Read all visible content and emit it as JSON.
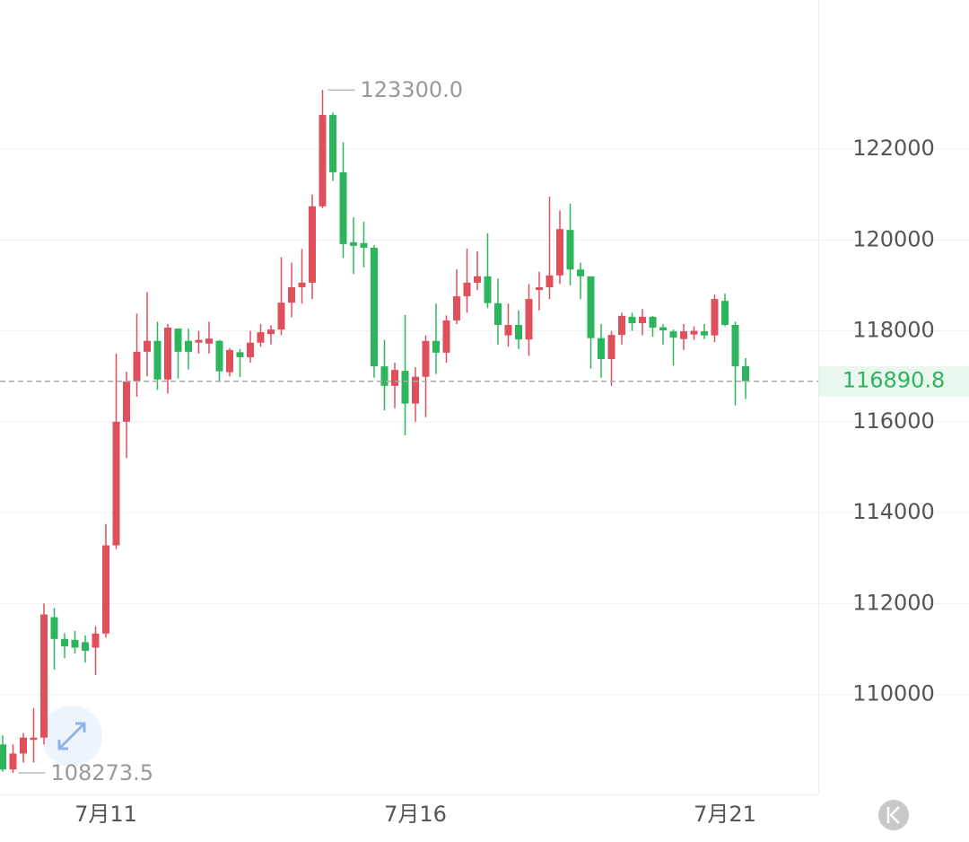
{
  "chart_data": {
    "type": "candlestick",
    "categories": [
      null,
      null,
      null,
      null,
      null,
      null,
      null,
      null,
      null,
      null,
      "7月11",
      null,
      null,
      null,
      null,
      null,
      null,
      null,
      null,
      null,
      null,
      null,
      null,
      null,
      null,
      null,
      null,
      null,
      null,
      null,
      null,
      null,
      null,
      null,
      null,
      null,
      null,
      null,
      null,
      null,
      "7月16",
      null,
      null,
      null,
      null,
      null,
      null,
      null,
      null,
      null,
      null,
      null,
      null,
      null,
      null,
      null,
      null,
      null,
      null,
      null,
      null,
      null,
      null,
      null,
      null,
      null,
      null,
      null,
      null,
      null,
      "7月21",
      null,
      null
    ],
    "open": [
      108900,
      108350,
      108700,
      109000,
      109050,
      111700,
      111220,
      111200,
      111150,
      111030,
      111340,
      113280,
      116000,
      116890,
      117540,
      117780,
      116930,
      118050,
      117780,
      117740,
      117720,
      117780,
      117090,
      117530,
      117420,
      117740,
      117930,
      118030,
      118620,
      118960,
      119060,
      120740,
      122750,
      121490,
      119950,
      119930,
      119830,
      117220,
      116790,
      117120,
      116400,
      116990,
      117780,
      117520,
      118230,
      118760,
      119060,
      119200,
      118610,
      117900,
      118130,
      117810,
      118900,
      118960,
      119220,
      120220,
      119350,
      119200,
      117840,
      117380,
      117910,
      118310,
      118170,
      118310,
      118080,
      117990,
      117820,
      117920,
      117990,
      117900,
      118660,
      118130,
      117220
    ],
    "high": [
      109100,
      108900,
      109150,
      109700,
      112000,
      111900,
      111350,
      111400,
      111300,
      111500,
      113750,
      117500,
      117100,
      118380,
      118850,
      118200,
      118150,
      118050,
      118050,
      118000,
      118200,
      117800,
      117620,
      117600,
      118000,
      118150,
      118120,
      119620,
      119500,
      119800,
      121000,
      123300,
      122800,
      122150,
      120500,
      120400,
      119880,
      117800,
      117300,
      118350,
      117200,
      117900,
      118600,
      118340,
      119350,
      119810,
      119750,
      120150,
      119150,
      118600,
      118450,
      119030,
      119300,
      120950,
      120650,
      120800,
      119500,
      119200,
      118150,
      118000,
      118400,
      118400,
      118480,
      118330,
      118150,
      118030,
      118150,
      118100,
      118150,
      118800,
      118820,
      118200,
      117400
    ],
    "low": [
      108300,
      108273.5,
      108500,
      108500,
      108900,
      110550,
      110800,
      110900,
      110700,
      110430,
      111250,
      113200,
      115200,
      116550,
      117000,
      116700,
      116620,
      116950,
      117150,
      117500,
      117500,
      116890,
      117000,
      116980,
      117300,
      117650,
      117700,
      117900,
      118300,
      118600,
      118700,
      120700,
      121300,
      119610,
      119250,
      119400,
      116970,
      116250,
      116300,
      115700,
      116000,
      116100,
      117050,
      117300,
      118150,
      118400,
      118900,
      118500,
      117700,
      117650,
      117600,
      117450,
      118450,
      118700,
      119030,
      119000,
      118700,
      117170,
      116970,
      116790,
      117700,
      118000,
      117900,
      117870,
      117700,
      117240,
      117580,
      117800,
      117820,
      117750,
      118100,
      116360,
      116500
    ],
    "close": [
      108350,
      108700,
      109050,
      109050,
      111760,
      111220,
      111060,
      111030,
      110960,
      111340,
      113280,
      116000,
      116890,
      117540,
      117780,
      116930,
      118070,
      117540,
      117540,
      117800,
      117830,
      117110,
      117580,
      117420,
      117740,
      117970,
      118030,
      118620,
      118960,
      119060,
      120740,
      122750,
      121490,
      119910,
      119870,
      119830,
      117220,
      116790,
      117140,
      116400,
      116990,
      117780,
      117520,
      118230,
      118760,
      119060,
      119200,
      118610,
      118130,
      118130,
      117810,
      118700,
      118960,
      119220,
      120240,
      119350,
      119200,
      117840,
      117380,
      117910,
      118330,
      118170,
      118310,
      118070,
      118010,
      117850,
      117990,
      118000,
      117900,
      118700,
      118130,
      117220,
      116890.8
    ],
    "up_color": "#e04f5c",
    "down_color": "#2db55d",
    "ylim": [
      107800,
      125280
    ],
    "yticks": [
      110000,
      112000,
      114000,
      116000,
      118000,
      120000,
      122000
    ],
    "grid": true,
    "last_price": 116890.8,
    "annotations": [
      {
        "value": 123300,
        "label": "123300.0"
      },
      {
        "value": 108273.5,
        "label": "108273.5"
      }
    ]
  }
}
